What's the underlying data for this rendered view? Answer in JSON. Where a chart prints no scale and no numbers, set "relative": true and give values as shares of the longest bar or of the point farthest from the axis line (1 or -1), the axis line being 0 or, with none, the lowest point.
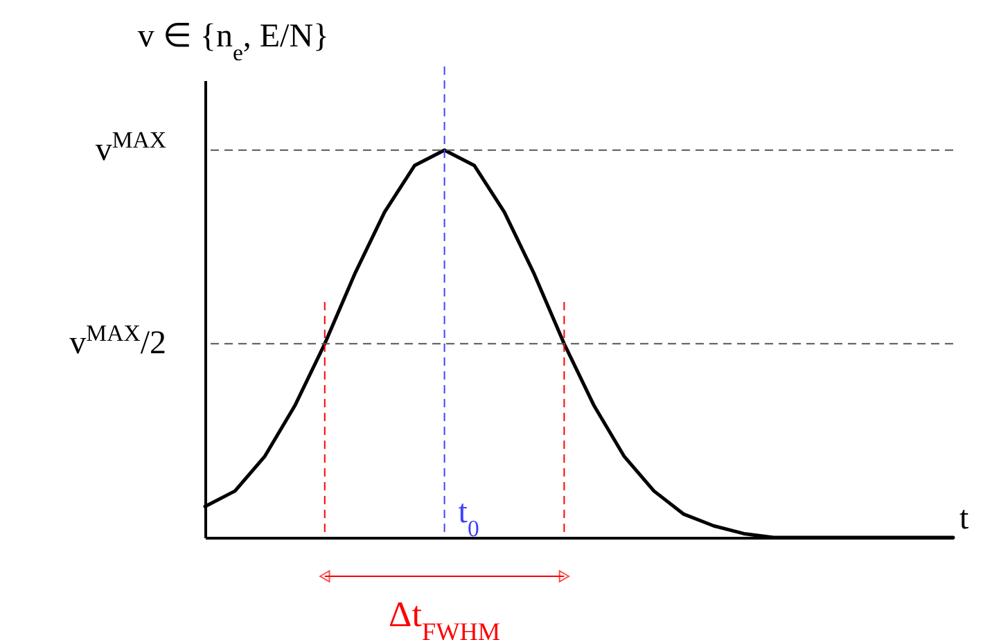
{
  "chart_data": {
    "type": "line",
    "relative": true,
    "ylabel": "v ∈ {n$_{e}$, E/N}",
    "xlabel": "t",
    "categories": [
      null,
      null,
      null,
      null,
      null,
      null,
      null,
      null,
      null,
      null,
      null,
      null,
      null,
      null,
      null,
      null,
      null,
      null,
      null,
      null,
      null,
      null,
      null,
      null,
      null,
      null
    ],
    "series": [
      {
        "color": "#000000",
        "values": [
          0.08,
          0.12,
          0.21,
          0.34,
          0.5,
          0.68,
          0.84,
          0.96,
          1,
          0.96,
          0.84,
          0.68,
          0.5,
          0.34,
          0.21,
          0.12,
          0.06,
          0.03,
          0.01,
          0,
          0,
          0,
          0,
          0,
          0,
          0
        ]
      }
    ],
    "ref_lines": [
      {
        "axis": "y",
        "value": 1,
        "label": "v$^{MAX}$",
        "color": "#555555",
        "line_style": "dashed"
      },
      {
        "axis": "y",
        "value": 0.5,
        "label": "v$^{MAX}$/2",
        "color": "#555555",
        "line_style": "dashed"
      }
    ],
    "annotations": [
      "t$_{0}$",
      "Δt$_{FWHM}$"
    ]
  }
}
